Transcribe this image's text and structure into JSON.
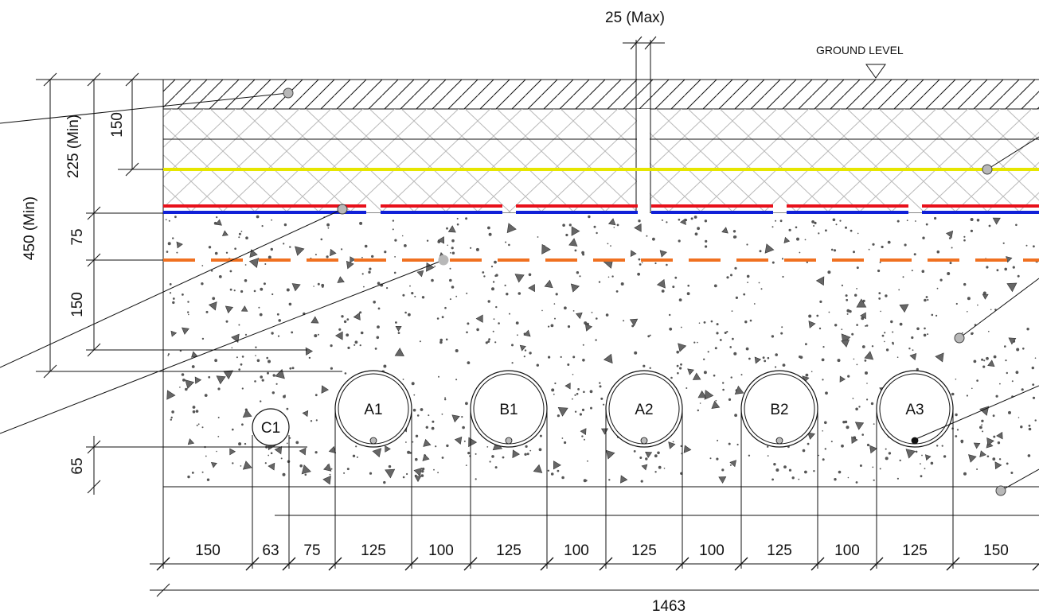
{
  "labels": {
    "ground_level": "GROUND LEVEL",
    "joint_width": "25 (Max)"
  },
  "vertical_dims": {
    "total_depth": "450 (Min)",
    "cover_depth": "225 (Min)",
    "surface_layer": "150",
    "bedding_top": "75",
    "bedding_mid": "150",
    "bottom_clearance": "65"
  },
  "pipes": [
    {
      "id": "C1"
    },
    {
      "id": "A1"
    },
    {
      "id": "B1"
    },
    {
      "id": "A2"
    },
    {
      "id": "B2"
    },
    {
      "id": "A3"
    }
  ],
  "horizontal_dims": [
    "150",
    "63",
    "75",
    "125",
    "100",
    "125",
    "100",
    "125",
    "100",
    "125",
    "100",
    "125",
    "150"
  ],
  "overall_width": "1463",
  "colors": {
    "warning_tape_yellow": "#e6e600",
    "cable_red": "#e8101a",
    "cable_blue": "#1020d8",
    "marker_tape_orange": "#f07020",
    "callout_dot": "#b8b8b8"
  }
}
